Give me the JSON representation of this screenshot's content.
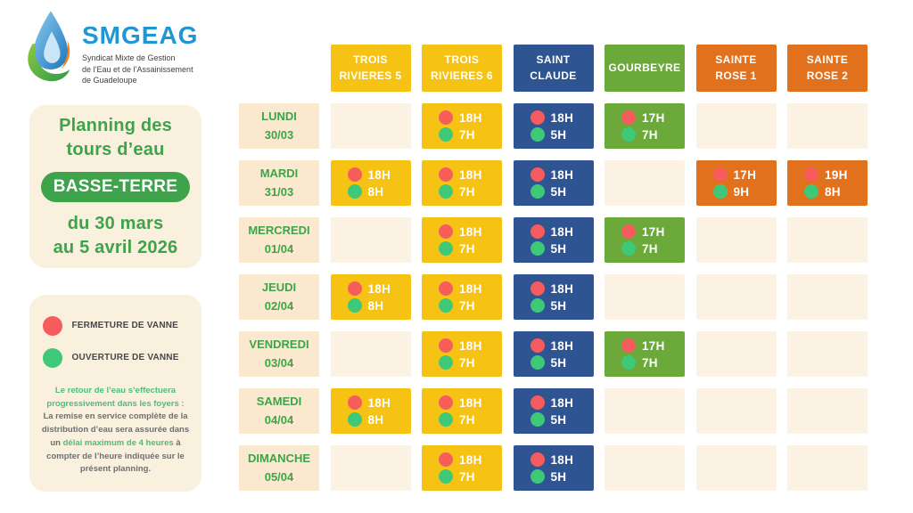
{
  "logo": {
    "brand": "SMGEAG",
    "subtitle": "Syndicat Mixte de Gestion\nde l’Eau et de l’Assainissement\nde Guadeloupe"
  },
  "panel": {
    "title": "Planning des\ntours d’eau",
    "badge": "BASSE-TERRE",
    "period": "du 30 mars\nau 5 avril 2026"
  },
  "legend": {
    "close_label": "FERMETURE DE VANNE",
    "open_label": "OUVERTURE DE VANNE",
    "note_green1": "Le retour de l’eau s’effectuera progressivement dans les foyers :",
    "note_gray1": "La remise en service complète de la distribution d’eau sera assurée dans un ",
    "note_green2": "délai maximum de 4 heures",
    "note_gray2": " à compter de l’heure indiquée sur le présent planning."
  },
  "colors": {
    "accent_green": "#3EA34A",
    "close_dot": "#F75C5C",
    "open_dot": "#3EC878",
    "yellow_zone": "#F6C213",
    "blue_zone": "#2F5492",
    "green_zone": "#6BAA3A",
    "orange_zone": "#E2711D",
    "cream_cell": "#FCF2E3",
    "cream_label": "#FAE9CF",
    "cream_panel": "#FAF0DE"
  },
  "schedule": {
    "columns": [
      {
        "id": "trois-rivieres-5",
        "label": "TROIS\nRIVIERES 5",
        "color": "#F6C213"
      },
      {
        "id": "trois-rivieres-6",
        "label": "TROIS\nRIVIERES 6",
        "color": "#F6C213"
      },
      {
        "id": "saint-claude",
        "label": "SAINT\nCLAUDE",
        "color": "#2F5492"
      },
      {
        "id": "gourbeyre",
        "label": "GOURBEYRE",
        "color": "#6BAA3A"
      },
      {
        "id": "sainte-rose-1",
        "label": "SAINTE\nROSE 1",
        "color": "#E2711D"
      },
      {
        "id": "sainte-rose-2",
        "label": "SAINTE\nROSE 2",
        "color": "#E2711D"
      }
    ],
    "rows": [
      {
        "label": "LUNDI\n30/03",
        "cells": [
          null,
          {
            "close": "18H",
            "open": "7H"
          },
          {
            "close": "18H",
            "open": "5H"
          },
          {
            "close": "17H",
            "open": "7H"
          },
          null,
          null
        ]
      },
      {
        "label": "MARDI\n31/03",
        "cells": [
          {
            "close": "18H",
            "open": "8H"
          },
          {
            "close": "18H",
            "open": "7H"
          },
          {
            "close": "18H",
            "open": "5H"
          },
          null,
          {
            "close": "17H",
            "open": "9H"
          },
          {
            "close": "19H",
            "open": "8H"
          }
        ]
      },
      {
        "label": "MERCREDI\n01/04",
        "cells": [
          null,
          {
            "close": "18H",
            "open": "7H"
          },
          {
            "close": "18H",
            "open": "5H"
          },
          {
            "close": "17H",
            "open": "7H"
          },
          null,
          null
        ]
      },
      {
        "label": "JEUDI\n02/04",
        "cells": [
          {
            "close": "18H",
            "open": "8H"
          },
          {
            "close": "18H",
            "open": "7H"
          },
          {
            "close": "18H",
            "open": "5H"
          },
          null,
          null,
          null
        ]
      },
      {
        "label": "VENDREDI\n03/04",
        "cells": [
          null,
          {
            "close": "18H",
            "open": "7H"
          },
          {
            "close": "18H",
            "open": "5H"
          },
          {
            "close": "17H",
            "open": "7H"
          },
          null,
          null
        ]
      },
      {
        "label": "SAMEDI\n04/04",
        "cells": [
          {
            "close": "18H",
            "open": "8H"
          },
          {
            "close": "18H",
            "open": "7H"
          },
          {
            "close": "18H",
            "open": "5H"
          },
          null,
          null,
          null
        ]
      },
      {
        "label": "DIMANCHE\n05/04",
        "cells": [
          null,
          {
            "close": "18H",
            "open": "7H"
          },
          {
            "close": "18H",
            "open": "5H"
          },
          null,
          null,
          null
        ]
      }
    ]
  }
}
